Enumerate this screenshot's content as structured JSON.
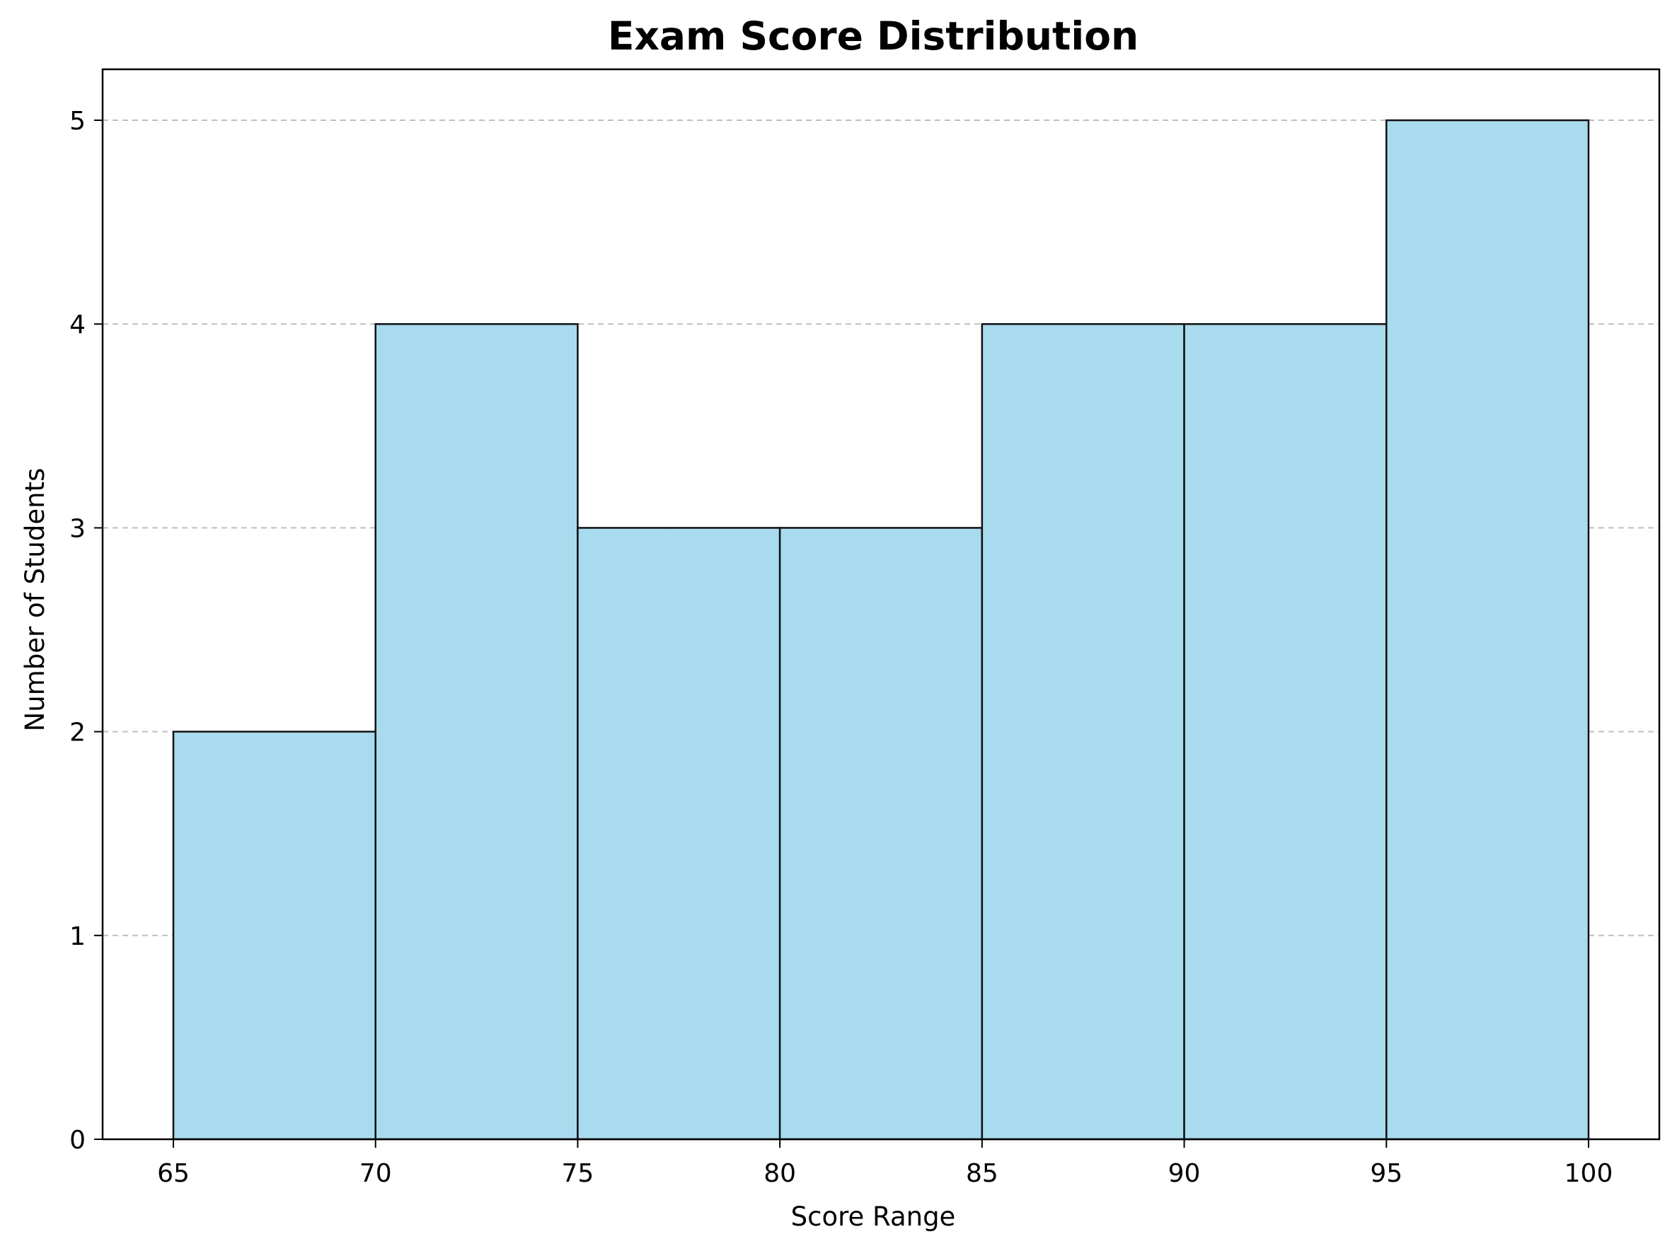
{
  "chart_data": {
    "type": "bar",
    "title": "Exam Score Distribution",
    "xlabel": "Score Range",
    "ylabel": "Number of Students",
    "bins": [
      {
        "start": 65,
        "end": 70,
        "count": 2
      },
      {
        "start": 70,
        "end": 75,
        "count": 4
      },
      {
        "start": 75,
        "end": 80,
        "count": 3
      },
      {
        "start": 80,
        "end": 85,
        "count": 3
      },
      {
        "start": 85,
        "end": 90,
        "count": 4
      },
      {
        "start": 90,
        "end": 95,
        "count": 4
      },
      {
        "start": 95,
        "end": 100,
        "count": 5
      }
    ],
    "xticks": [
      65,
      70,
      75,
      80,
      85,
      90,
      95,
      100
    ],
    "yticks": [
      0,
      1,
      2,
      3,
      4,
      5
    ],
    "xlim": [
      63.25,
      101.75
    ],
    "ylim": [
      0,
      5.25
    ],
    "grid": "y-dashed",
    "colors": {
      "bar_fill": "#a8dbed",
      "bar_edge": "#111111",
      "grid": "#bfbfbf",
      "axis": "#000000"
    }
  }
}
